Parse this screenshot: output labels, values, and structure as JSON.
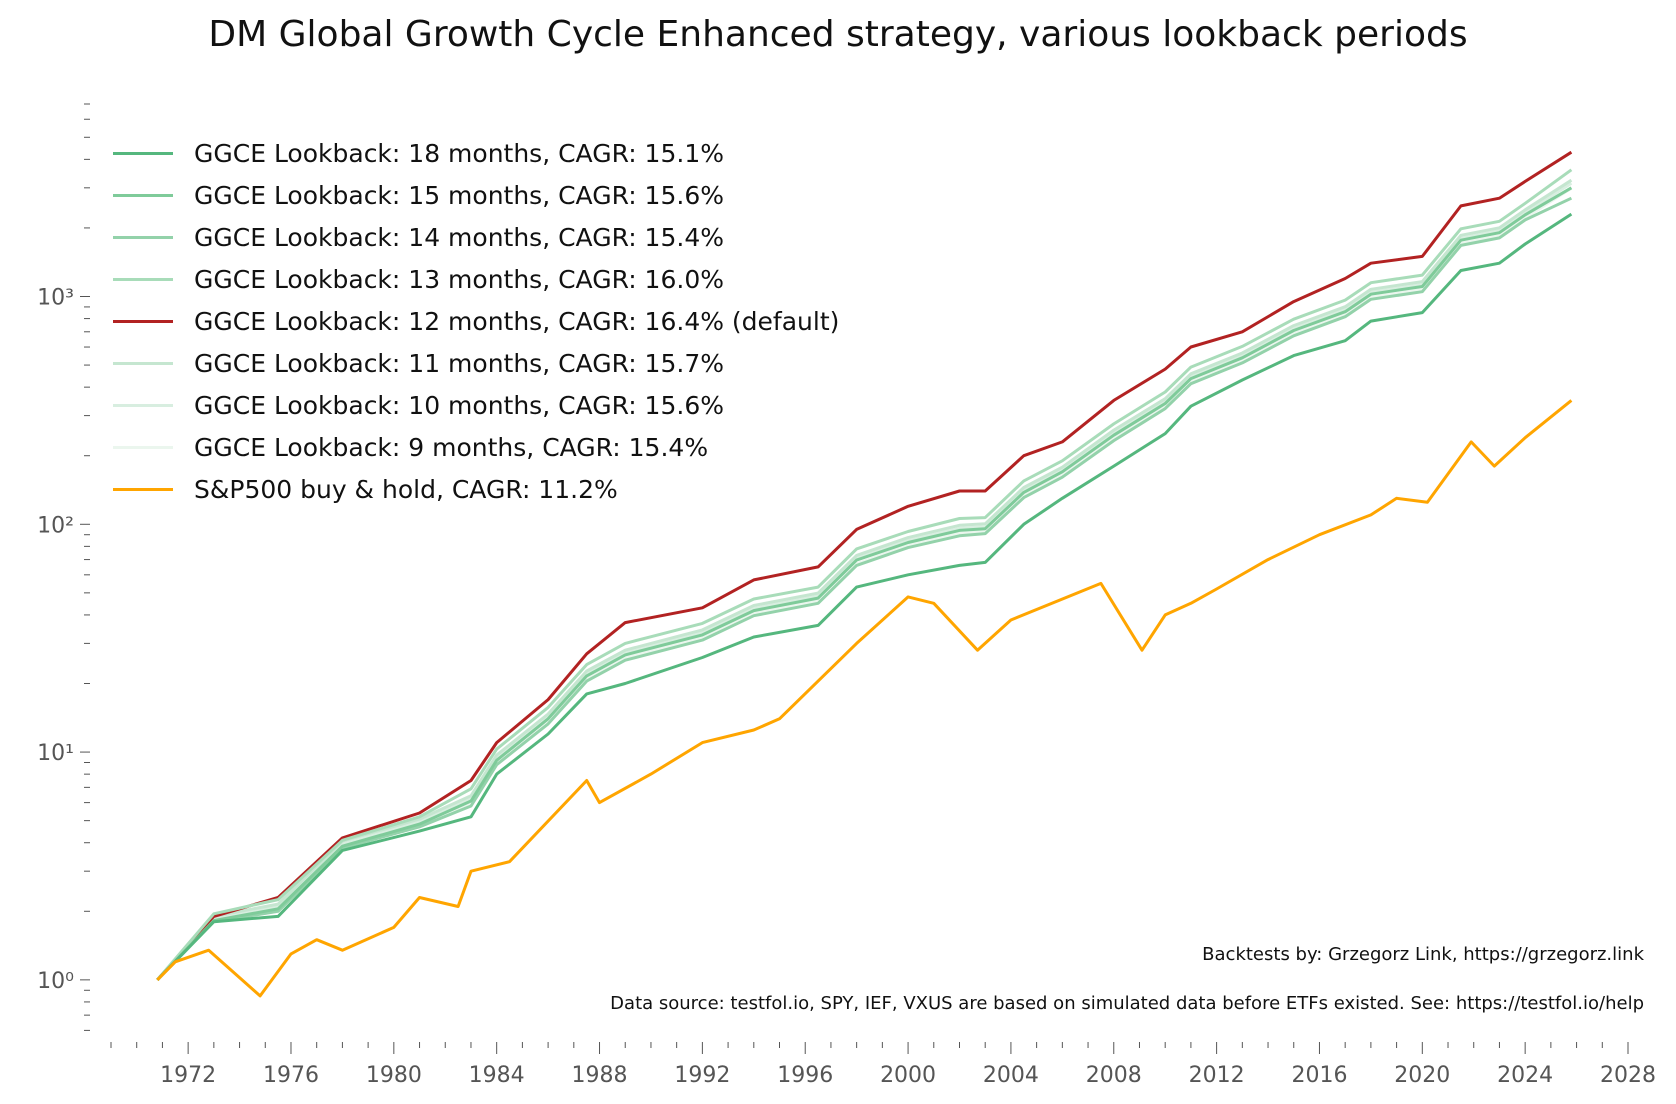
{
  "chart_data": {
    "type": "line",
    "title": "DM Global Growth Cycle Enhanced strategy, various lookback periods",
    "xlabel": "",
    "ylabel": "",
    "xlim": [
      1969,
      2028
    ],
    "ylim": [
      0.55,
      7000
    ],
    "yscale": "log",
    "grid": false,
    "legend_position": "top-left",
    "xticks": [
      "1972",
      "1976",
      "1980",
      "1984",
      "1988",
      "1992",
      "1996",
      "2000",
      "2004",
      "2008",
      "2012",
      "2016",
      "2020",
      "2024",
      "2028"
    ],
    "yticks": [
      {
        "value": 1,
        "label": "10⁰"
      },
      {
        "value": 10,
        "label": "10¹"
      },
      {
        "value": 100,
        "label": "10²"
      },
      {
        "value": 1000,
        "label": "10³"
      }
    ],
    "ggce_x": [
      1970.8,
      1973,
      1975.5,
      1978,
      1981,
      1983,
      1984,
      1986,
      1987.5,
      1989,
      1992,
      1994,
      1996.5,
      1998,
      2000,
      2002,
      2003,
      2004.5,
      2006,
      2008,
      2010,
      2011,
      2013,
      2015,
      2017,
      2018,
      2020,
      2021.5,
      2023,
      2024,
      2025.8
    ],
    "series": [
      {
        "name": "GGCE Lookback: 9 months, CAGR: 15.4%",
        "color": "#ebf6ee",
        "values": [
          1,
          1.8,
          2.0,
          3.8,
          4.7,
          5.9,
          8.9,
          13.6,
          21,
          26,
          32,
          41,
          46,
          67,
          81,
          91,
          93,
          134,
          164,
          238,
          329,
          423,
          522,
          687,
          832,
          993,
          1073,
          1713,
          1847,
          2215,
          2990
        ]
      },
      {
        "name": "GGCE Lookback: 10 months, CAGR: 15.6%",
        "color": "#d8eee0",
        "values": [
          1,
          1.85,
          2.09,
          3.94,
          4.93,
          6.24,
          9.38,
          14.3,
          22,
          27.2,
          33.4,
          42.7,
          48.4,
          71,
          84.9,
          96,
          97.6,
          141,
          173,
          251,
          346,
          445,
          549,
          723,
          876,
          1045,
          1129,
          1803,
          1944,
          2332,
          3145
        ]
      },
      {
        "name": "GGCE Lookback: 11 months, CAGR: 15.7%",
        "color": "#c5e6d0",
        "values": [
          1,
          1.9,
          2.15,
          4.06,
          5.08,
          6.43,
          9.7,
          14.7,
          22.7,
          28,
          34.4,
          44,
          49.9,
          73,
          87.4,
          99,
          100.5,
          145,
          178,
          259,
          356,
          458,
          565,
          745,
          902,
          1076,
          1163,
          1857,
          2002,
          2402,
          3240
        ]
      },
      {
        "name": "GGCE Lookback: 12 months, CAGR: 16.4% (default)",
        "color": "#b22222",
        "values": [
          1,
          1.9,
          2.3,
          4.2,
          5.4,
          7.5,
          11,
          17,
          27,
          37,
          43,
          57,
          65,
          95,
          120,
          140,
          140,
          200,
          230,
          350,
          480,
          600,
          700,
          950,
          1200,
          1400,
          1500,
          2500,
          2700,
          3200,
          4300
        ]
      },
      {
        "name": "GGCE Lookback: 13 months, CAGR: 16.0%",
        "color": "#a8dcb9",
        "values": [
          1,
          1.95,
          2.25,
          4.1,
          5.2,
          6.9,
          10.3,
          15.7,
          24.2,
          30,
          36.7,
          47,
          53,
          78,
          93,
          106,
          107,
          155,
          190,
          276,
          381,
          490,
          604,
          795,
          964,
          1150,
          1242,
          1983,
          2138,
          2565,
          3600
        ]
      },
      {
        "name": "GGCE Lookback: 14 months, CAGR: 15.4%",
        "color": "#93d2aa",
        "values": [
          1,
          1.8,
          2.0,
          3.8,
          4.7,
          5.8,
          8.8,
          13.3,
          20.5,
          25.3,
          31,
          39.7,
          45,
          66,
          79,
          89,
          91,
          131,
          161,
          233,
          322,
          414,
          511,
          672,
          815,
          972,
          1050,
          1677,
          1808,
          2169,
          2700
        ]
      },
      {
        "name": "GGCE Lookback: 15 months, CAGR: 15.6%",
        "color": "#7fcb9a",
        "values": [
          1,
          1.82,
          2.05,
          3.86,
          4.83,
          6.1,
          9.2,
          14,
          21.6,
          26.7,
          32.7,
          41.8,
          47.4,
          69.6,
          83.2,
          94,
          95.6,
          138,
          170,
          246,
          339,
          436,
          538,
          709,
          858,
          1024,
          1106,
          1767,
          1905,
          2285,
          3000
        ]
      },
      {
        "name": "GGCE Lookback: 18 months, CAGR: 15.1%",
        "color": "#55b77e",
        "values": [
          1,
          1.8,
          1.9,
          3.7,
          4.5,
          5.2,
          8,
          12,
          18,
          20,
          26,
          32,
          36,
          53,
          60,
          66,
          68,
          100,
          130,
          180,
          250,
          330,
          430,
          550,
          640,
          780,
          850,
          1300,
          1400,
          1700,
          2300
        ]
      },
      {
        "name": "S&P500 buy & hold, CAGR: 11.2%",
        "color": "#ffa500",
        "x": [
          1970.8,
          1971.5,
          1972.8,
          1974.8,
          1976,
          1977,
          1978,
          1980,
          1981,
          1982.5,
          1983,
          1984.5,
          1987.5,
          1988,
          1990,
          1992,
          1994,
          1995,
          1998,
          2000,
          2001,
          2002.7,
          2004,
          2007.5,
          2009.1,
          2010,
          2011,
          2012,
          2014,
          2016,
          2018,
          2019,
          2020.2,
          2021.9,
          2022.8,
          2024,
          2025.8
        ],
        "values": [
          1,
          1.2,
          1.35,
          0.85,
          1.3,
          1.5,
          1.35,
          1.7,
          2.3,
          2.1,
          3.0,
          3.3,
          7.5,
          6,
          8,
          11,
          12.5,
          14,
          30,
          48,
          45,
          28,
          38,
          55,
          28,
          40,
          45,
          52,
          70,
          90,
          110,
          130,
          125,
          230,
          180,
          240,
          350
        ]
      }
    ],
    "legend_order": [
      7,
      6,
      5,
      4,
      3,
      2,
      1,
      0,
      8
    ],
    "annotations": [
      "Backtests by: Grzegorz Link, https://grzegorz.link",
      "Data source: testfol.io, SPY, IEF, VXUS are based on simulated data before ETFs existed. See: https://testfol.io/help"
    ]
  }
}
